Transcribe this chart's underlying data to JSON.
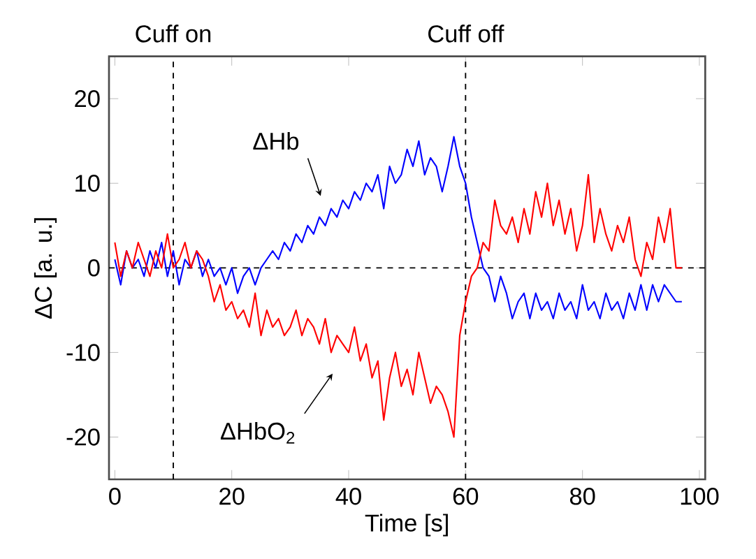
{
  "chart_data": {
    "type": "line",
    "xlabel": "Time [s]",
    "ylabel": "ΔC [a. u.]",
    "x": [
      0,
      1,
      2,
      3,
      4,
      5,
      6,
      7,
      8,
      9,
      10,
      11,
      12,
      13,
      14,
      15,
      16,
      17,
      18,
      19,
      20,
      21,
      22,
      23,
      24,
      25,
      26,
      27,
      28,
      29,
      30,
      31,
      32,
      33,
      34,
      35,
      36,
      37,
      38,
      39,
      40,
      41,
      42,
      43,
      44,
      45,
      46,
      47,
      48,
      49,
      50,
      51,
      52,
      53,
      54,
      55,
      56,
      57,
      58,
      59,
      60,
      61,
      62,
      63,
      64,
      65,
      66,
      67,
      68,
      69,
      70,
      71,
      72,
      73,
      74,
      75,
      76,
      77,
      78,
      79,
      80,
      81,
      82,
      83,
      84,
      85,
      86,
      87,
      88,
      89,
      90,
      91,
      92,
      93,
      94,
      95,
      96,
      97
    ],
    "series": [
      {
        "color": "#0000ff",
        "values": [
          1,
          -2,
          2,
          0,
          1,
          -1,
          2,
          0,
          3,
          -1,
          2,
          -2,
          1,
          0,
          2,
          -1,
          1,
          -1,
          0,
          -2,
          0,
          -3,
          -1,
          0,
          -2,
          0,
          1,
          2,
          1,
          3,
          2,
          4,
          3,
          5,
          4,
          6,
          5,
          7,
          6,
          8,
          7,
          9,
          8,
          10,
          9,
          11,
          7,
          12,
          10,
          11,
          14,
          12,
          15,
          11,
          13,
          12,
          9,
          12,
          15.5,
          12,
          10,
          6,
          3,
          0,
          -1,
          -4,
          -1,
          -3,
          -6,
          -4,
          -3,
          -6,
          -3,
          -5,
          -4,
          -6,
          -3,
          -5,
          -4,
          -6,
          -2,
          -5,
          -4,
          -6,
          -3,
          -5,
          -4,
          -6,
          -3,
          -5,
          -2,
          -5,
          -2,
          -4,
          -2,
          -3,
          -4,
          -4
        ]
      },
      {
        "color": "#ff0000",
        "values": [
          3,
          -1,
          2,
          0,
          3,
          1,
          -1,
          2,
          0,
          4,
          0,
          1,
          3,
          0,
          2,
          1,
          -1,
          -4,
          -2,
          -5,
          -4,
          -6,
          -5,
          -7,
          -3,
          -8,
          -5,
          -7,
          -6,
          -8,
          -7,
          -5,
          -8,
          -6,
          -7,
          -9,
          -6,
          -10,
          -8,
          -9,
          -10,
          -7,
          -11,
          -9,
          -13,
          -11,
          -18,
          -13,
          -10,
          -14,
          -12,
          -15,
          -10,
          -13,
          -16,
          -14,
          -15,
          -17,
          -20,
          -8,
          -4,
          -1,
          0,
          3,
          2,
          8,
          5,
          4,
          6,
          3,
          7,
          4,
          9,
          6,
          10,
          5,
          8,
          4,
          7,
          2,
          5,
          11,
          3,
          7,
          4,
          2,
          5,
          3,
          6,
          1,
          -1,
          3,
          1,
          6,
          3,
          7,
          0,
          0
        ]
      }
    ],
    "xlim": [
      -1,
      101
    ],
    "ylim": [
      -25,
      25
    ],
    "xticks": [
      0,
      20,
      40,
      60,
      80,
      100
    ],
    "yticks": [
      -20,
      -10,
      0,
      10,
      20
    ],
    "ref_lines": [
      {
        "axis": "x",
        "value": 10,
        "label": "Cuff on",
        "line_style": "dashed"
      },
      {
        "axis": "x",
        "value": 60,
        "label": "Cuff off",
        "line_style": "dashed"
      },
      {
        "axis": "y",
        "value": 0,
        "line_style": "dashed"
      }
    ],
    "annotations": [
      "ΔHb",
      "ΔHbO$_{2}$"
    ],
    "grid": false,
    "marker": "none",
    "line_style": "solid"
  }
}
